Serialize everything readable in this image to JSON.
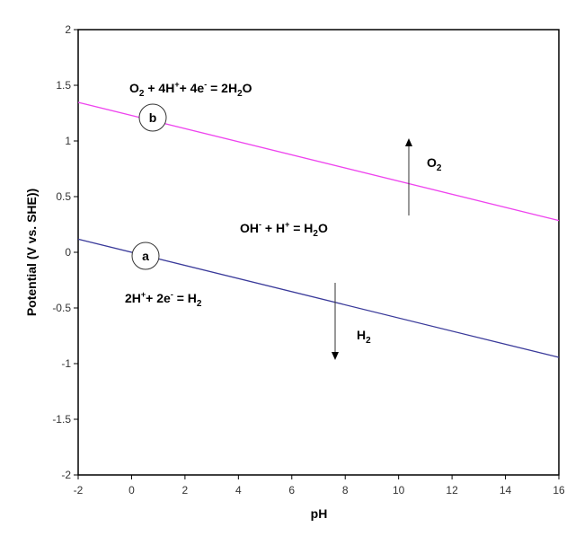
{
  "chart_data": {
    "type": "line",
    "title": "",
    "xlabel": "pH",
    "ylabel": "Potential (V vs. SHE))",
    "xlim": [
      -2,
      16
    ],
    "ylim": [
      -2,
      2
    ],
    "xticks": [
      -2,
      0,
      2,
      4,
      6,
      8,
      10,
      12,
      14,
      16
    ],
    "yticks": [
      2,
      1.5,
      1,
      0.5,
      0,
      -0.5,
      -1,
      -1.5,
      -2
    ],
    "ytick_labels": [
      "2",
      "1.5",
      "1",
      "0.5",
      "0",
      "-0.5",
      "-1",
      "-1.5",
      "-2"
    ],
    "grid": false,
    "legend": null,
    "series": [
      {
        "name": "a",
        "color": "#3a3a9a",
        "x": [
          -2,
          16
        ],
        "y": [
          0.118,
          -0.944
        ]
      },
      {
        "name": "b",
        "color": "#ee44ee",
        "x": [
          -2,
          16
        ],
        "y": [
          1.347,
          0.285
        ]
      }
    ],
    "annotations": {
      "line_b_label": "b",
      "line_a_label": "a",
      "eq_o2": {
        "base1": "O",
        "sub1": "2",
        "mid1": " + 4H",
        "sup1": "+",
        "mid2": "+ 4e",
        "sup2": "-",
        "mid3": " = 2H",
        "sub2": "2",
        "end": "O"
      },
      "eq_water": {
        "base1": "OH",
        "sup1": "-",
        "mid1": " + H",
        "sup2": "+",
        "mid2": " = H",
        "sub1": "2",
        "end": "O"
      },
      "eq_h2": {
        "base1": "2H",
        "sup1": "+",
        "mid1": "+ 2e",
        "sup2": "-",
        "mid2": " = H",
        "sub1": "2"
      },
      "o2_label": {
        "base": "O",
        "sub": "2"
      },
      "h2_label": {
        "base": "H",
        "sub": "2"
      }
    }
  }
}
